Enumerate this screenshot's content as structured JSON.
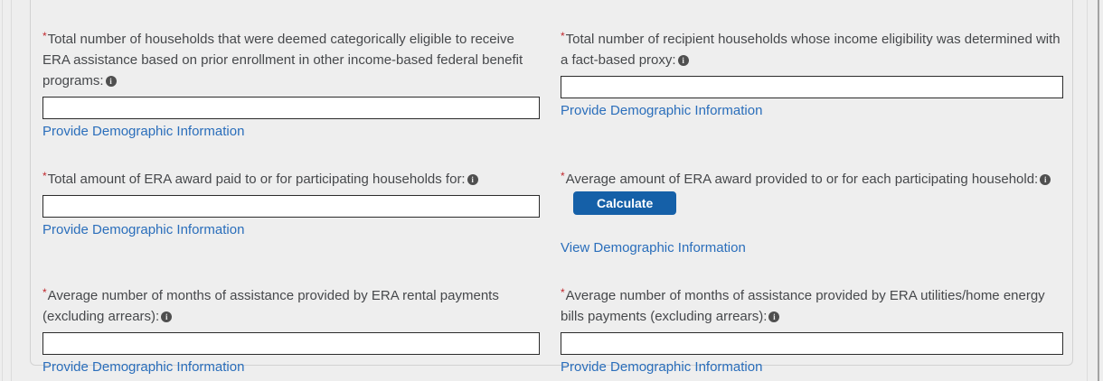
{
  "markers": {
    "required": "*",
    "info_glyph": "i"
  },
  "colors": {
    "label_text": "#46484b",
    "link": "#2a6ebb",
    "required_marker": "#c0272d",
    "button_bg": "#1560a8",
    "button_text": "#ffffff",
    "info_icon_bg": "#4f4f4f",
    "page_bg": "#eeeeee",
    "input_border": "#2b2b2b"
  },
  "fields": [
    {
      "label": "Total number of households that were deemed categorically eligible to receive ERA assistance based on prior enrollment in other income-based federal benefit programs:",
      "value": "",
      "link": "Provide Demographic Information"
    },
    {
      "label": "Total number of recipient households whose income eligibility was determined with a fact-based proxy:",
      "value": "",
      "link": "Provide Demographic Information"
    },
    {
      "label": "Total amount of ERA award paid to or for participating households for:",
      "value": "",
      "link": "Provide Demographic Information"
    },
    {
      "label": "Average amount of ERA award provided to or for each participating household:",
      "button": "Calculate",
      "link": "View Demographic Information"
    },
    {
      "label": "Average number of months of assistance provided by ERA rental payments (excluding arrears):",
      "value": "",
      "link": "Provide Demographic Information"
    },
    {
      "label": "Average number of months of assistance provided by ERA utilities/home energy bills payments (excluding arrears):",
      "value": "",
      "link": "Provide Demographic Information"
    }
  ]
}
